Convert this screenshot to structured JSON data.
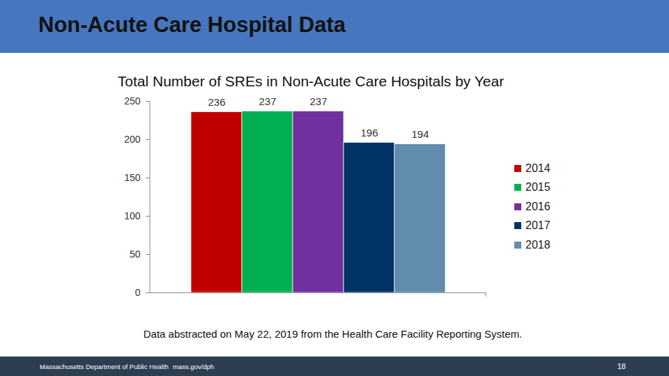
{
  "header": {
    "title": "Non-Acute Care Hospital Data"
  },
  "chart_data": {
    "type": "bar",
    "title": "Total Number of SREs in Non-Acute Care Hospitals by Year",
    "caption": "Data abstracted on May 22, 2019 from the Health Care Facility Reporting System.",
    "categories": [
      "2014",
      "2015",
      "2016",
      "2017",
      "2018"
    ],
    "values": [
      236,
      237,
      237,
      196,
      194
    ],
    "colors": [
      "#c00000",
      "#00b050",
      "#7030a0",
      "#003366",
      "#5f8dab"
    ],
    "ylim": [
      0,
      250
    ],
    "yticks": [
      0,
      50,
      100,
      150,
      200,
      250
    ],
    "grid": false,
    "legend": "right",
    "data_labels": true,
    "tick_labels": "y"
  },
  "footer": {
    "left": "Massachusetts Department of Public Health",
    "center": "mass.gov/dph",
    "page": "18"
  }
}
